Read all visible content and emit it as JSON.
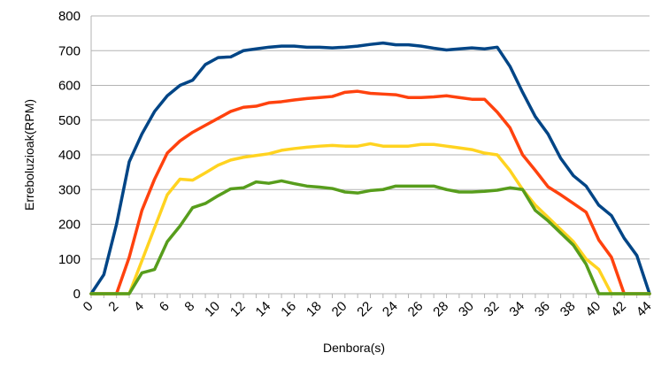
{
  "chart_data": {
    "type": "line",
    "title": "",
    "xlabel": "Denbora(s)",
    "ylabel": "Erreboluzioak(RPM)",
    "xlim": [
      0,
      44
    ],
    "ylim": [
      0,
      800
    ],
    "x_ticks": [
      0,
      2,
      4,
      6,
      8,
      10,
      12,
      14,
      16,
      18,
      20,
      22,
      24,
      26,
      28,
      30,
      32,
      34,
      36,
      38,
      40,
      42,
      44
    ],
    "y_ticks": [
      0,
      100,
      200,
      300,
      400,
      500,
      600,
      700,
      800
    ],
    "grid": "horizontal",
    "legend": "none",
    "x": [
      0,
      1,
      2,
      3,
      4,
      5,
      6,
      7,
      8,
      9,
      10,
      11,
      12,
      13,
      14,
      15,
      16,
      17,
      18,
      19,
      20,
      21,
      22,
      23,
      24,
      25,
      26,
      27,
      28,
      29,
      30,
      31,
      32,
      33,
      34,
      35,
      36,
      37,
      38,
      39,
      40,
      41,
      42,
      43,
      44
    ],
    "series": [
      {
        "color": "#004586",
        "values": [
          0,
          55,
          200,
          380,
          460,
          525,
          570,
          600,
          615,
          660,
          680,
          682,
          700,
          705,
          710,
          713,
          713,
          710,
          710,
          708,
          710,
          713,
          718,
          722,
          717,
          717,
          713,
          707,
          702,
          705,
          708,
          705,
          710,
          655,
          580,
          510,
          460,
          390,
          340,
          310,
          255,
          225,
          160,
          110,
          0
        ]
      },
      {
        "color": "#ff420e",
        "values": [
          0,
          0,
          0,
          105,
          240,
          330,
          405,
          440,
          465,
          485,
          505,
          525,
          537,
          540,
          550,
          553,
          558,
          562,
          565,
          568,
          580,
          583,
          577,
          575,
          573,
          565,
          565,
          567,
          570,
          565,
          560,
          560,
          523,
          478,
          400,
          355,
          308,
          285,
          260,
          235,
          155,
          105,
          0,
          0,
          0
        ]
      },
      {
        "color": "#ffd320",
        "values": [
          0,
          0,
          0,
          0,
          95,
          190,
          285,
          330,
          327,
          348,
          370,
          385,
          393,
          398,
          403,
          413,
          418,
          422,
          425,
          427,
          425,
          425,
          432,
          425,
          425,
          425,
          430,
          430,
          425,
          420,
          415,
          405,
          400,
          355,
          300,
          255,
          220,
          185,
          150,
          100,
          70,
          0,
          0,
          0,
          0
        ]
      },
      {
        "color": "#579d1c",
        "values": [
          0,
          0,
          0,
          0,
          60,
          70,
          150,
          195,
          248,
          260,
          282,
          302,
          305,
          322,
          318,
          325,
          317,
          310,
          307,
          303,
          293,
          290,
          297,
          300,
          310,
          310,
          310,
          310,
          300,
          293,
          293,
          295,
          298,
          305,
          300,
          240,
          210,
          175,
          140,
          85,
          0,
          0,
          0,
          0,
          0
        ]
      }
    ]
  }
}
